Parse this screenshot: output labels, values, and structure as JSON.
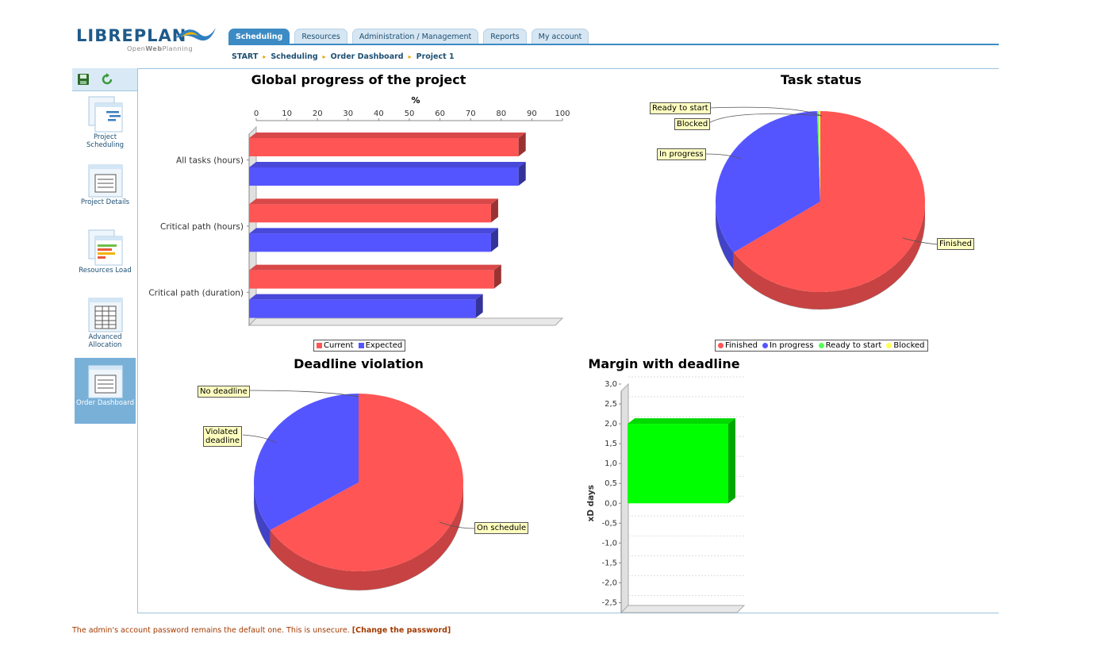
{
  "logo": {
    "word": "LIBREPLAN",
    "sub_pre": "Open",
    "sub_bold": "Web",
    "sub_post": "Planning"
  },
  "tabs": [
    {
      "label": "Scheduling",
      "active": true
    },
    {
      "label": "Resources",
      "active": false
    },
    {
      "label": "Administration / Management",
      "active": false
    },
    {
      "label": "Reports",
      "active": false
    },
    {
      "label": "My account",
      "active": false
    }
  ],
  "breadcrumb": [
    "START",
    "Scheduling",
    "Order Dashboard",
    "Project 1"
  ],
  "sidebar": {
    "toolbar": [
      "save-icon",
      "reload-icon"
    ],
    "items": [
      {
        "label": "Project Scheduling",
        "icon": "gantt-icon",
        "active": false
      },
      {
        "label": "Project Details",
        "icon": "details-icon",
        "active": false
      },
      {
        "label": "Resources Load",
        "icon": "resources-load-icon",
        "active": false
      },
      {
        "label": "Advanced Allocation",
        "icon": "allocation-icon",
        "active": false
      },
      {
        "label": "Order Dashboard",
        "icon": "dashboard-icon",
        "active": true
      }
    ]
  },
  "chart_data": [
    {
      "type": "bar",
      "orientation": "horizontal",
      "title": "Global progress of the project",
      "xlabel": "%",
      "xlim": [
        0,
        100
      ],
      "xticks": [
        0,
        10,
        20,
        30,
        40,
        50,
        60,
        70,
        80,
        90,
        100
      ],
      "categories": [
        "All tasks (hours)",
        "Critical path (hours)",
        "Critical path (duration)"
      ],
      "series": [
        {
          "name": "Current",
          "color": "#ff5555",
          "values": [
            88,
            79,
            80
          ]
        },
        {
          "name": "Expected",
          "color": "#5555ff",
          "values": [
            88,
            79,
            74
          ]
        }
      ],
      "legend": "bottom"
    },
    {
      "type": "pie",
      "title": "Task status",
      "slices": [
        {
          "label": "Finished",
          "value": 65.5,
          "color": "#ff5555"
        },
        {
          "label": "In progress",
          "value": 34,
          "color": "#5555ff"
        },
        {
          "label": "Ready to start",
          "value": 0.25,
          "color": "#55ff55"
        },
        {
          "label": "Blocked",
          "value": 0.25,
          "color": "#ffff55"
        }
      ],
      "legend": "bottom"
    },
    {
      "type": "pie",
      "title": "Deadline violation",
      "slices": [
        {
          "label": "On schedule",
          "value": 66,
          "color": "#ff5555"
        },
        {
          "label": "Violated\ndeadline",
          "value": 34,
          "color": "#5555ff"
        },
        {
          "label": "No deadline",
          "value": 0,
          "color": "#55ff55"
        }
      ]
    },
    {
      "type": "bar",
      "title": "Margin with deadline",
      "ylabel": "xD days",
      "ylim": [
        -2.75,
        3.0
      ],
      "yticks": [
        "3,0",
        "2,5",
        "2,0",
        "1,5",
        "1,0",
        "0,5",
        "0,0",
        "-0,5",
        "-1,0",
        "-1,5",
        "-2,0",
        "-2,5"
      ],
      "values": [
        2.0
      ],
      "color": "#00ff00"
    }
  ],
  "footer": {
    "message": "The admin's account password remains the default one. This is unsecure.",
    "link": "[Change the password]"
  }
}
